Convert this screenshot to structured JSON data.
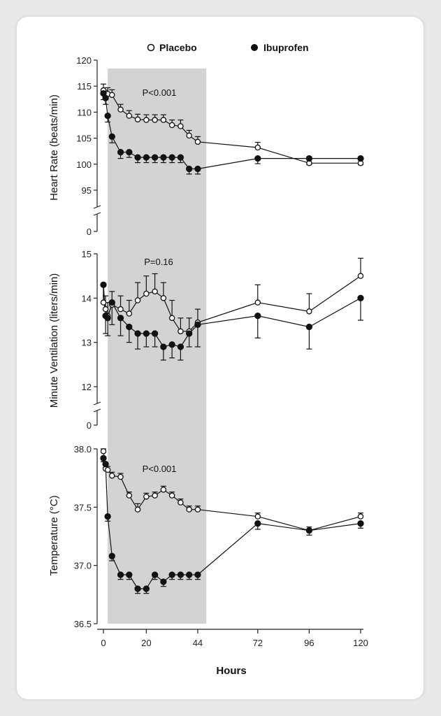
{
  "chart_data": {
    "type": "line",
    "xlabel": "Hours",
    "x_ticks": [
      0,
      20,
      44,
      72,
      96,
      120
    ],
    "shaded_region_x": [
      2,
      48
    ],
    "legend": [
      {
        "name": "Placebo",
        "marker": "open-circle"
      },
      {
        "name": "Ibuprofen",
        "marker": "filled-circle"
      }
    ],
    "legend_position": "top",
    "panels": [
      {
        "ylabel": "Heart Rate (beats/min)",
        "y_ticks": [
          95,
          100,
          105,
          110,
          115,
          120
        ],
        "y_break_value": 0,
        "ylim": [
          92,
          120
        ],
        "annotation": "P<0.001",
        "series": [
          {
            "name": "Placebo",
            "x": [
              0,
              1,
              2,
              4,
              8,
              12,
              16,
              20,
              24,
              28,
              32,
              36,
              40,
              44,
              72,
              96,
              120
            ],
            "y": [
              114.2,
              113,
              113.5,
              113.3,
              110.5,
              109.3,
              108.6,
              108.5,
              108.5,
              108.5,
              107.5,
              107.3,
              105.5,
              104.3,
              103.2,
              100.2,
              100.2
            ],
            "err": [
              1.2,
              1.2,
              1.2,
              1.0,
              1.0,
              1.0,
              1.0,
              1.0,
              1.0,
              1.0,
              1.0,
              1.2,
              1.0,
              1.0,
              1.0,
              1.2,
              1.0
            ]
          },
          {
            "name": "Ibuprofen",
            "x": [
              0,
              1,
              2,
              4,
              8,
              12,
              16,
              20,
              24,
              28,
              32,
              36,
              40,
              44,
              72,
              96,
              120
            ],
            "y": [
              113.6,
              112.7,
              109.3,
              105.3,
              102.3,
              102.3,
              101.3,
              101.3,
              101.3,
              101.3,
              101.3,
              101.3,
              99.1,
              99.1,
              101.1,
              101.1,
              101.1
            ],
            "err": [
              1.2,
              1.2,
              1.2,
              1.2,
              1.2,
              1.0,
              1.0,
              1.0,
              1.0,
              1.0,
              1.0,
              1.0,
              1.0,
              1.0,
              1.0,
              1.2,
              1.2
            ]
          }
        ]
      },
      {
        "ylabel": "Minute Ventilation (liters/min)",
        "y_ticks": [
          12,
          13,
          14,
          15
        ],
        "y_break_value": 0,
        "ylim": [
          11.6,
          15
        ],
        "annotation": "P=0.16",
        "series": [
          {
            "name": "Placebo",
            "x": [
              0,
              1,
              2,
              4,
              8,
              12,
              16,
              20,
              24,
              28,
              32,
              36,
              40,
              44,
              72,
              96,
              120
            ],
            "y": [
              13.9,
              13.75,
              13.6,
              13.85,
              13.75,
              13.65,
              13.95,
              14.1,
              14.15,
              14.0,
              13.55,
              13.25,
              13.25,
              13.45,
              13.9,
              13.7,
              14.5
            ],
            "err": [
              0.4,
              0.3,
              0.3,
              0.3,
              0.3,
              0.3,
              0.4,
              0.4,
              0.4,
              0.35,
              0.4,
              0.3,
              0.3,
              0.3,
              0.4,
              0.4,
              0.4
            ]
          },
          {
            "name": "Ibuprofen",
            "x": [
              0,
              1,
              2,
              4,
              8,
              12,
              16,
              20,
              24,
              28,
              32,
              36,
              40,
              44,
              72,
              96,
              120
            ],
            "y": [
              14.3,
              13.6,
              13.55,
              13.9,
              13.55,
              13.35,
              13.2,
              13.2,
              13.2,
              12.9,
              12.95,
              12.9,
              13.2,
              13.4,
              13.6,
              13.35,
              14.0
            ],
            "err": [
              0.4,
              0.4,
              0.4,
              0.5,
              0.4,
              0.35,
              0.35,
              0.3,
              0.3,
              0.3,
              0.3,
              0.3,
              0.3,
              0.5,
              0.5,
              0.5,
              0.5
            ]
          }
        ]
      },
      {
        "ylabel": "Temperature (°C)",
        "y_ticks": [
          "36.5",
          "37.0",
          "37.5",
          "38.0"
        ],
        "ylim": [
          36.5,
          38.0
        ],
        "annotation": "P<0.001",
        "series": [
          {
            "name": "Placebo",
            "x": [
              0,
              1,
              2,
              4,
              8,
              12,
              16,
              20,
              24,
              28,
              32,
              36,
              40,
              44,
              72,
              96,
              120
            ],
            "y": [
              37.98,
              37.83,
              37.82,
              37.77,
              37.76,
              37.6,
              37.48,
              37.59,
              37.6,
              37.65,
              37.6,
              37.54,
              37.48,
              37.48,
              37.42,
              37.3,
              37.42
            ],
            "err": [
              0.02,
              0.03,
              0.03,
              0.03,
              0.03,
              0.03,
              0.05,
              0.03,
              0.03,
              0.03,
              0.03,
              0.03,
              0.03,
              0.03,
              0.03,
              0.03,
              0.03
            ]
          },
          {
            "name": "Ibuprofen",
            "x": [
              0,
              1,
              2,
              4,
              8,
              12,
              16,
              20,
              24,
              28,
              32,
              36,
              40,
              44,
              72,
              96,
              120
            ],
            "y": [
              37.92,
              37.87,
              37.42,
              37.08,
              36.92,
              36.92,
              36.8,
              36.8,
              36.92,
              36.86,
              36.92,
              36.92,
              36.92,
              36.92,
              37.36,
              37.3,
              37.36
            ],
            "err": [
              0.03,
              0.03,
              0.04,
              0.04,
              0.04,
              0.04,
              0.04,
              0.04,
              0.04,
              0.04,
              0.04,
              0.04,
              0.04,
              0.04,
              0.05,
              0.04,
              0.04
            ]
          }
        ]
      }
    ]
  }
}
